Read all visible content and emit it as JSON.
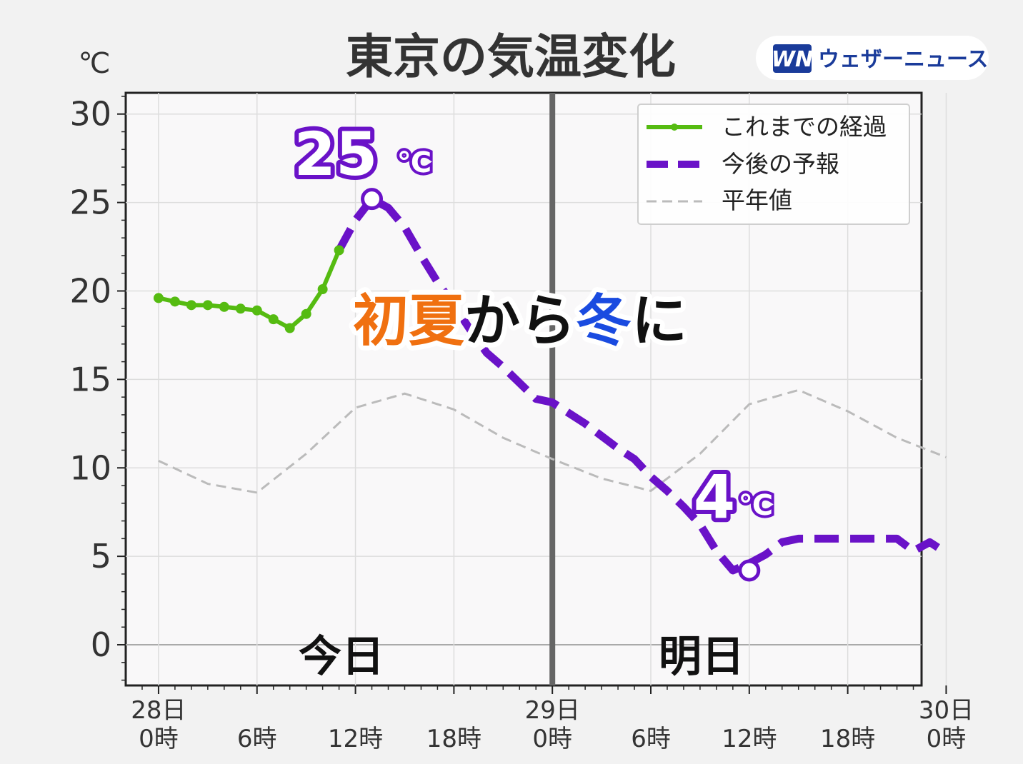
{
  "title": "東京の気温変化",
  "unit_label": "℃",
  "brand": {
    "logo": "WN",
    "name": "ウェザーニュース"
  },
  "headline": {
    "part1": "初夏",
    "part2": "から",
    "part3": "冬",
    "part4": "に",
    "colors": {
      "part1": "#f07010",
      "part2": "#111111",
      "part3": "#1a4be0",
      "part4": "#111111"
    }
  },
  "day_labels": {
    "today": "今日",
    "tomorrow": "明日"
  },
  "annotations": [
    {
      "text": "25",
      "unit": "℃",
      "x": 13,
      "y": 25.2
    },
    {
      "text": "4",
      "unit": "℃",
      "x": 36,
      "y": 4.2
    }
  ],
  "chart_data": {
    "type": "line",
    "xlim": [
      -2,
      46.5
    ],
    "ylim": [
      -2.3,
      31.2
    ],
    "y_ticks": [
      0,
      5,
      10,
      15,
      20,
      25,
      30
    ],
    "x_ticks": [
      {
        "x": 0,
        "line1": "28日",
        "line2": "0時"
      },
      {
        "x": 6,
        "line1": "",
        "line2": "6時"
      },
      {
        "x": 12,
        "line1": "",
        "line2": "12時"
      },
      {
        "x": 18,
        "line1": "",
        "line2": "18時"
      },
      {
        "x": 24,
        "line1": "29日",
        "line2": "0時"
      },
      {
        "x": 30,
        "line1": "",
        "line2": "6時"
      },
      {
        "x": 36,
        "line1": "",
        "line2": "12時"
      },
      {
        "x": 42,
        "line1": "",
        "line2": "18時"
      },
      {
        "x": 48,
        "line1": "30日",
        "line2": "0時"
      }
    ],
    "divider_x": 24,
    "grid": true,
    "legend_position": "top-right",
    "series": [
      {
        "name": "これまでの経過",
        "color": "#55bb11",
        "style": "solid-markers",
        "x": [
          0,
          1,
          2,
          3,
          4,
          5,
          6,
          7,
          8,
          9,
          10,
          11
        ],
        "y": [
          19.6,
          19.4,
          19.2,
          19.2,
          19.1,
          19.0,
          18.9,
          18.4,
          17.9,
          18.7,
          20.1,
          22.3
        ]
      },
      {
        "name": "今後の予報",
        "color": "#6a12c8",
        "style": "dashed",
        "x": [
          11,
          12,
          13,
          14,
          15,
          16,
          17,
          18,
          19,
          20,
          21,
          22,
          23,
          24,
          25,
          26,
          27,
          28,
          29,
          30,
          31,
          32,
          33,
          34,
          35,
          36,
          37,
          38,
          39,
          40,
          41,
          42,
          43,
          44,
          45,
          46,
          47,
          48
        ],
        "y": [
          22.3,
          24.0,
          25.2,
          24.7,
          23.6,
          22.0,
          20.5,
          19.2,
          17.8,
          16.5,
          15.7,
          14.8,
          13.9,
          13.7,
          13.1,
          12.5,
          11.8,
          11.1,
          10.5,
          9.5,
          8.7,
          7.8,
          6.8,
          5.3,
          4.2,
          4.6,
          5.1,
          5.8,
          6.0,
          6.0,
          6.0,
          6.0,
          6.0,
          6.0,
          6.0,
          5.3,
          5.8,
          5.2
        ]
      },
      {
        "name": "平年値",
        "color": "#bbbbbb",
        "style": "dashed-thin",
        "x": [
          0,
          3,
          6,
          9,
          12,
          15,
          18,
          21,
          24,
          27,
          30,
          33,
          36,
          39,
          42,
          45,
          48
        ],
        "y": [
          10.4,
          9.1,
          8.6,
          10.8,
          13.4,
          14.2,
          13.3,
          11.7,
          10.5,
          9.4,
          8.7,
          10.8,
          13.6,
          14.4,
          13.2,
          11.7,
          10.6
        ]
      }
    ]
  }
}
